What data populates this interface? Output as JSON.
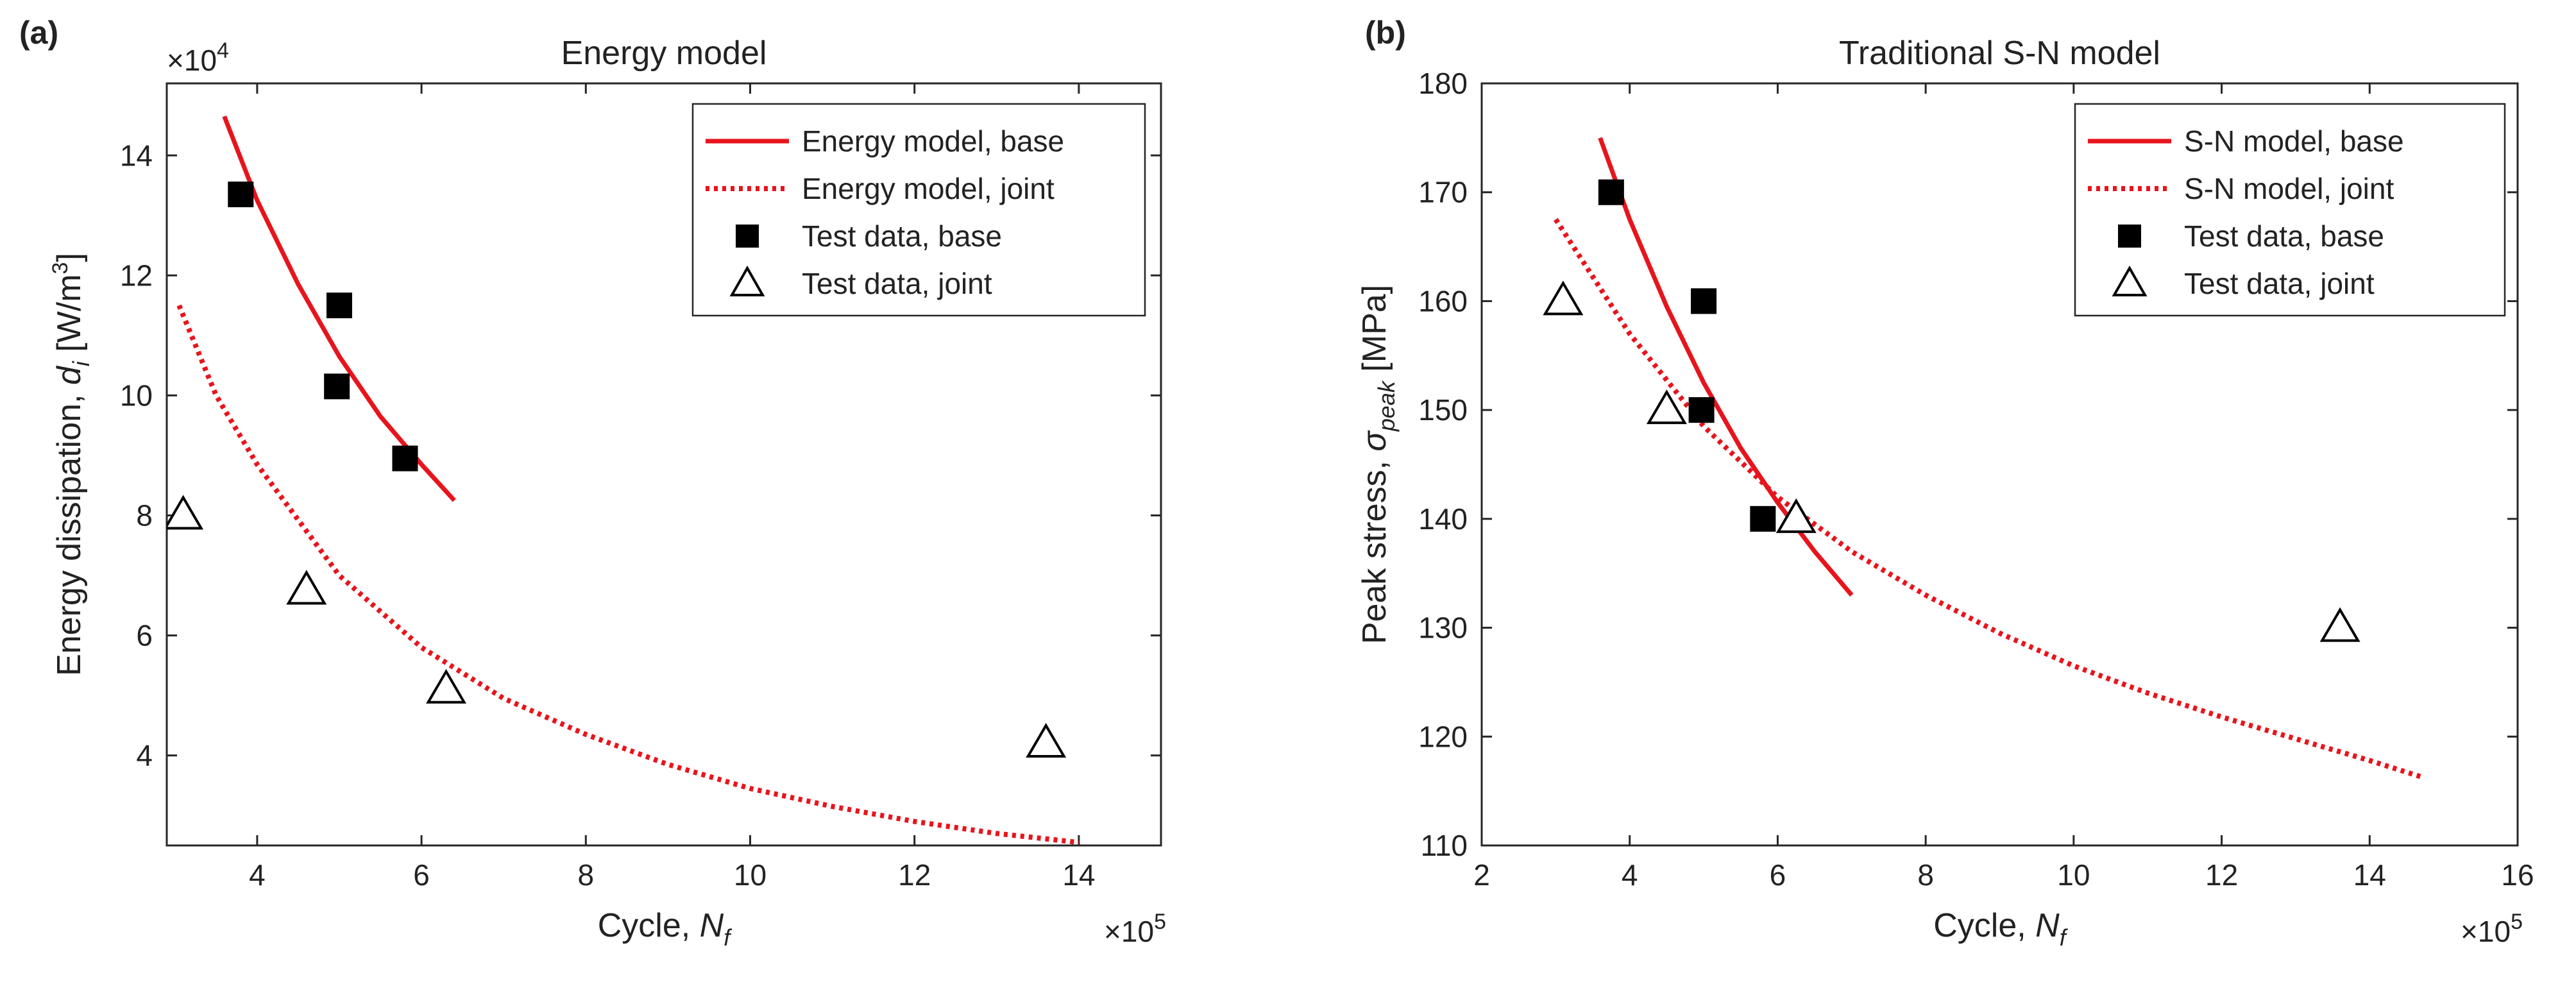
{
  "chart_data": [
    {
      "type": "scatter",
      "panel_label": "(a)",
      "title": "Energy model",
      "xlabel": {
        "main": "Cycle, ",
        "var": "N",
        "sub": "f"
      },
      "ylabel": {
        "main": "Energy dissipation, ",
        "var": "d",
        "sub": "i",
        "unit_pre": " [W/m",
        "unit_sup": "3",
        "unit_post": "]"
      },
      "x_exponent": {
        "prefix": "×10",
        "power": "5"
      },
      "y_exponent": {
        "prefix": "×10",
        "power": "4"
      },
      "xlim": [
        2.9,
        15
      ],
      "ylim": [
        2.5,
        15.2
      ],
      "x_ticks": [
        4,
        6,
        8,
        10,
        12,
        14
      ],
      "y_ticks": [
        4,
        6,
        8,
        10,
        12,
        14
      ],
      "x_tick_labels": [
        "4",
        "6",
        "8",
        "10",
        "12",
        "14"
      ],
      "y_tick_labels": [
        "4",
        "6",
        "8",
        "10",
        "12",
        "14"
      ],
      "legend_position": "top-right",
      "series": [
        {
          "name": "Energy model, base",
          "style": "solid-line",
          "color": "#e8141c",
          "x": [
            3.6,
            4.0,
            4.5,
            5.0,
            5.5,
            6.0,
            6.4
          ],
          "y": [
            14.65,
            13.25,
            11.85,
            10.65,
            9.65,
            8.85,
            8.25
          ]
        },
        {
          "name": "Energy model, joint",
          "style": "dotted-line",
          "color": "#e8141c",
          "x": [
            3.05,
            3.5,
            4.0,
            5.0,
            6.0,
            7.0,
            8.0,
            9.0,
            10.0,
            11.0,
            12.0,
            13.0,
            14.0
          ],
          "y": [
            11.5,
            10.0,
            8.85,
            7.0,
            5.8,
            4.95,
            4.35,
            3.85,
            3.45,
            3.15,
            2.9,
            2.7,
            2.55
          ]
        },
        {
          "name": "Test data, base",
          "style": "filled-square",
          "color": "#000000",
          "x": [
            3.8,
            5.0,
            4.97,
            5.8
          ],
          "y": [
            13.35,
            11.5,
            10.15,
            8.95
          ]
        },
        {
          "name": "Test data, joint",
          "style": "open-triangle",
          "color": "#000000",
          "x": [
            3.1,
            4.6,
            6.3,
            13.6
          ],
          "y": [
            8.0,
            6.75,
            5.1,
            4.2
          ]
        }
      ]
    },
    {
      "type": "scatter",
      "panel_label": "(b)",
      "title": "Traditional S-N model",
      "xlabel": {
        "main": "Cycle, ",
        "var": "N",
        "sub": "f"
      },
      "ylabel": {
        "main": "Peak stress, ",
        "var": "σ",
        "sub": "peak",
        "unit_pre": " [MPa]",
        "unit_sup": "",
        "unit_post": ""
      },
      "x_exponent": {
        "prefix": "×10",
        "power": "5"
      },
      "y_exponent": null,
      "xlim": [
        2,
        16
      ],
      "ylim": [
        110,
        180
      ],
      "x_ticks": [
        2,
        4,
        6,
        8,
        10,
        12,
        14,
        16
      ],
      "y_ticks": [
        110,
        120,
        130,
        140,
        150,
        160,
        170,
        180
      ],
      "x_tick_labels": [
        "2",
        "4",
        "6",
        "8",
        "10",
        "12",
        "14",
        "16"
      ],
      "y_tick_labels": [
        "110",
        "120",
        "130",
        "140",
        "150",
        "160",
        "170",
        "180"
      ],
      "legend_position": "top-right",
      "series": [
        {
          "name": "S-N model, base",
          "style": "solid-line",
          "color": "#e8141c",
          "x": [
            3.6,
            4.0,
            4.5,
            5.0,
            5.5,
            6.0,
            6.5,
            7.0
          ],
          "y": [
            175.0,
            167.5,
            159.5,
            152.5,
            146.5,
            141.5,
            137.0,
            133.0
          ]
        },
        {
          "name": "S-N model, joint",
          "style": "dotted-line",
          "color": "#e8141c",
          "x": [
            3.0,
            4.0,
            5.0,
            6.0,
            7.0,
            8.0,
            9.0,
            10.0,
            11.0,
            12.0,
            13.0,
            14.0,
            14.7
          ],
          "y": [
            167.5,
            157.0,
            148.5,
            142.0,
            137.0,
            133.0,
            129.5,
            126.5,
            124.0,
            121.8,
            119.8,
            117.8,
            116.3
          ]
        },
        {
          "name": "Test data, base",
          "style": "filled-square",
          "color": "#000000",
          "x": [
            3.75,
            5.0,
            4.97,
            5.8
          ],
          "y": [
            170,
            160,
            150,
            140
          ]
        },
        {
          "name": "Test data, joint",
          "style": "open-triangle",
          "color": "#000000",
          "x": [
            3.1,
            4.5,
            6.25,
            13.6
          ],
          "y": [
            160,
            150,
            140,
            130
          ]
        }
      ]
    }
  ]
}
